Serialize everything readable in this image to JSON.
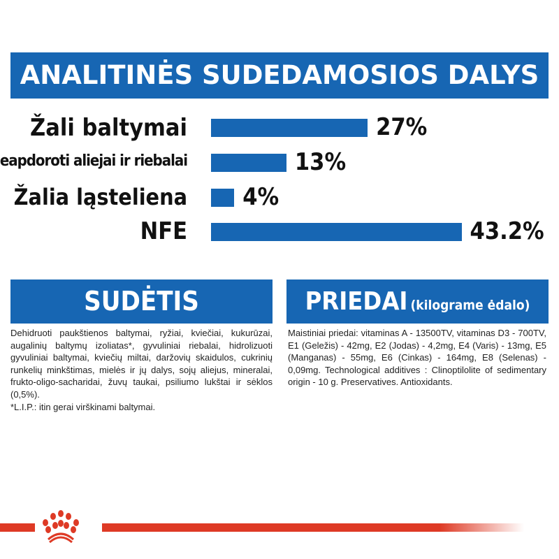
{
  "header": {
    "title": "ANALITINĖS SUDEDAMOSIOS DALYS"
  },
  "chart_data": {
    "type": "bar",
    "orientation": "horizontal",
    "categories": [
      "Žali baltymai",
      "Neapdoroti aliejai ir riebalai",
      "Žalia ląsteliena",
      "NFE"
    ],
    "values": [
      27,
      13,
      4,
      43.2
    ],
    "data_labels": [
      "27%",
      "13%",
      "4%",
      "43.2%"
    ],
    "unit": "%",
    "color": "#1766b3"
  },
  "composition": {
    "title": "SUDĖTIS",
    "text": "Dehidruoti paukštienos baltymai, ryžiai, kviečiai, kukurūzai, augalinių baltymų izoliatas*, gyvuliniai riebalai, hidrolizuoti gyvuliniai baltymai, kviečių miltai, daržovių skaidulos, cukrinių runkelių minkštimas, mielės ir jų dalys, sojų aliejus, mineralai, frukto-oligo-sacharidai, žuvų taukai, psiliumo lukštai ir sėklos (0,5%).",
    "footnote": "*L.I.P.: itin gerai virškinami baltymai."
  },
  "additives": {
    "title": "PRIEDAI",
    "subtitle": "(kilograme ėdalo)",
    "text": "Maistiniai priedai: vitaminas A - 13500TV, vitaminas D3 - 700TV, E1 (Geležis) - 42mg, E2 (Jodas) - 4,2mg, E4 (Varis) - 13mg, E5 (Manganas) - 55mg, E6 (Cinkas) - 164mg, E8 (Selenas) - 0,09mg. Technological additives : Clinoptilolite of sedimentary origin - 10 g. Preservatives. Antioxidants."
  },
  "brand": {
    "logo_icon": "crown-icon",
    "color": "#de3a25"
  }
}
